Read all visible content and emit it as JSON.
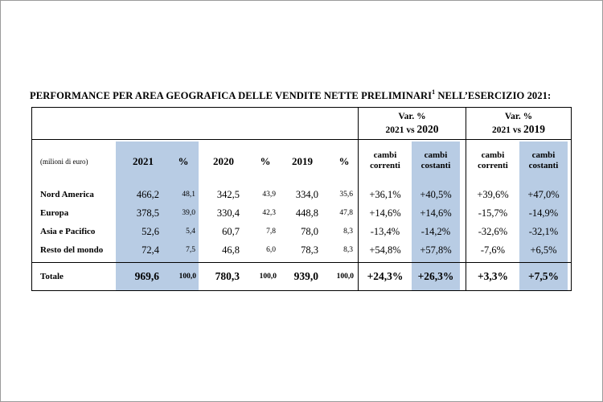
{
  "title": {
    "text": "PERFORMANCE PER AREA GEOGRAFICA DELLE VENDITE NETTE PRELIMINARI",
    "sup": "1",
    "suffix": " NELL’ESERCIZIO 2021:"
  },
  "header": {
    "unit": "(milioni di euro)",
    "col_2021": "2021",
    "pct1": "%",
    "col_2020": "2020",
    "pct2": "%",
    "col_2019": "2019",
    "pct3": "%",
    "var1_line1": "Var. %",
    "var1_line2a": "2021 vs ",
    "var1_line2b": "2020",
    "var2_line1": "Var. %",
    "var2_line2a": "2021 vs ",
    "var2_line2b": "2019",
    "cambi_correnti_a": "cambi",
    "cambi_correnti_b": "correnti",
    "cambi_costanti_a": "cambi",
    "cambi_costanti_b": "costanti"
  },
  "rows": [
    {
      "area": "Nord America",
      "v2021": "466,2",
      "p2021": "48,1",
      "v2020": "342,5",
      "p2020": "43,9",
      "v2019": "334,0",
      "p2019": "35,6",
      "c1": "+36,1%",
      "k1": "+40,5%",
      "c2": "+39,6%",
      "k2": "+47,0%"
    },
    {
      "area": "Europa",
      "v2021": "378,5",
      "p2021": "39,0",
      "v2020": "330,4",
      "p2020": "42,3",
      "v2019": "448,8",
      "p2019": "47,8",
      "c1": "+14,6%",
      "k1": "+14,6%",
      "c2": "-15,7%",
      "k2": "-14,9%"
    },
    {
      "area": "Asia e Pacifico",
      "v2021": "52,6",
      "p2021": "5,4",
      "v2020": "60,7",
      "p2020": "7,8",
      "v2019": "78,0",
      "p2019": "8,3",
      "c1": "-13,4%",
      "k1": "-14,2%",
      "c2": "-32,6%",
      "k2": "-32,1%"
    },
    {
      "area": "Resto del mondo",
      "v2021": "72,4",
      "p2021": "7,5",
      "v2020": "46,8",
      "p2020": "6,0",
      "v2019": "78,3",
      "p2019": "8,3",
      "c1": "+54,8%",
      "k1": "+57,8%",
      "c2": "-7,6%",
      "k2": "+6,5%"
    }
  ],
  "total": {
    "area": "Totale",
    "v2021": "969,6",
    "p2021": "100,0",
    "v2020": "780,3",
    "p2020": "100,0",
    "v2019": "939,0",
    "p2019": "100,0",
    "c1": "+24,3%",
    "k1": "+26,3%",
    "c2": "+3,3%",
    "k2": "+7,5%"
  },
  "colors": {
    "shade": "#b8cce4"
  }
}
